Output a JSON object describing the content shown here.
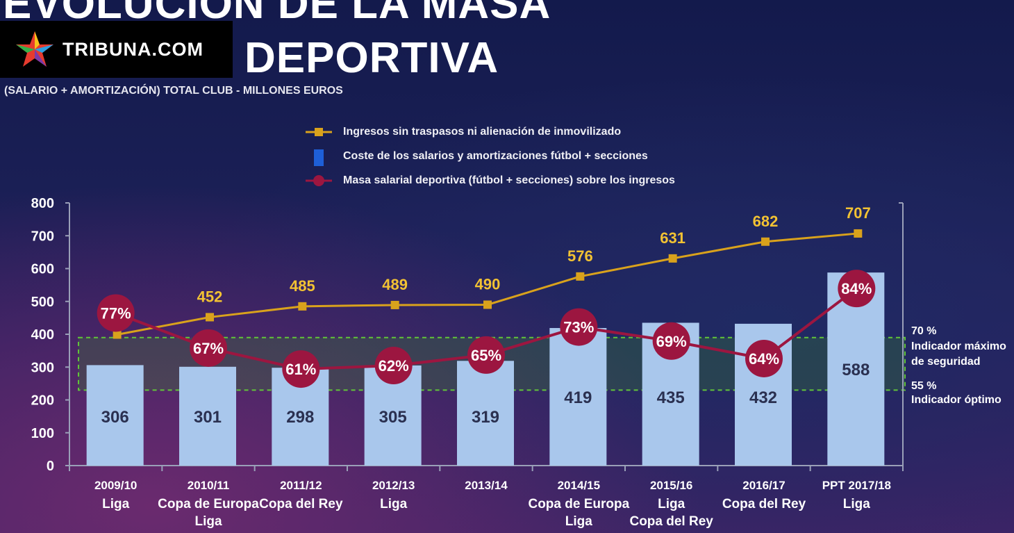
{
  "header": {
    "title_line1": "EVOLUCIÓN DE LA MASA",
    "title_line2": "DEPORTIVA",
    "subtitle": "(SALARIO + AMORTIZACIÓN) TOTAL CLUB  - MILLONES EUROS",
    "logo_text": "TRIBUNA.COM"
  },
  "colors": {
    "income_line": "#d9a21c",
    "bars": "#a9c7ec",
    "ratio_line": "#9c1640",
    "band": "#3a8a2a",
    "band_border": "#62c43a"
  },
  "annotations": {
    "max_pct": "70 %",
    "max_label_1": "Indicador máximo",
    "max_label_2": "de seguridad",
    "opt_pct": "55 %",
    "opt_label": "Indicador óptimo"
  },
  "chart_data": {
    "type": "bar",
    "categories": [
      "2009/10",
      "2010/11",
      "2011/12",
      "2012/13",
      "2013/14",
      "2014/15",
      "2015/16",
      "2016/17",
      "PPT 2017/18"
    ],
    "category_sublabels": [
      [
        "Liga"
      ],
      [
        "Copa de Europa",
        "Liga"
      ],
      [
        "Copa del Rey"
      ],
      [
        "Liga"
      ],
      [],
      [
        "Copa de Europa",
        "Liga"
      ],
      [
        "Liga",
        "Copa del Rey"
      ],
      [
        "Copa del Rey"
      ],
      [
        "Liga"
      ]
    ],
    "series": [
      {
        "name": "Ingresos sin traspasos ni alienación de inmovilizado",
        "kind": "line",
        "values": [
          399,
          452,
          485,
          489,
          490,
          576,
          631,
          682,
          707
        ]
      },
      {
        "name": "Coste de los salarios y amortizaciones fútbol + secciones",
        "kind": "bar",
        "values": [
          306,
          301,
          298,
          305,
          319,
          419,
          435,
          432,
          588
        ]
      },
      {
        "name": "Masa salarial deportiva (fútbol + secciones) sobre los ingresos",
        "kind": "line",
        "values": [
          77,
          67,
          61,
          62,
          65,
          73,
          69,
          64,
          84
        ],
        "value_labels": [
          "77%",
          "67%",
          "61%",
          "62%",
          "65%",
          "73%",
          "69%",
          "64%",
          "84%"
        ]
      }
    ],
    "yticks": [
      0,
      100,
      200,
      300,
      400,
      500,
      600,
      700,
      800
    ],
    "ylim": [
      0,
      800
    ],
    "band": [
      230,
      390
    ],
    "grid": false,
    "legend_position": "top-center"
  }
}
